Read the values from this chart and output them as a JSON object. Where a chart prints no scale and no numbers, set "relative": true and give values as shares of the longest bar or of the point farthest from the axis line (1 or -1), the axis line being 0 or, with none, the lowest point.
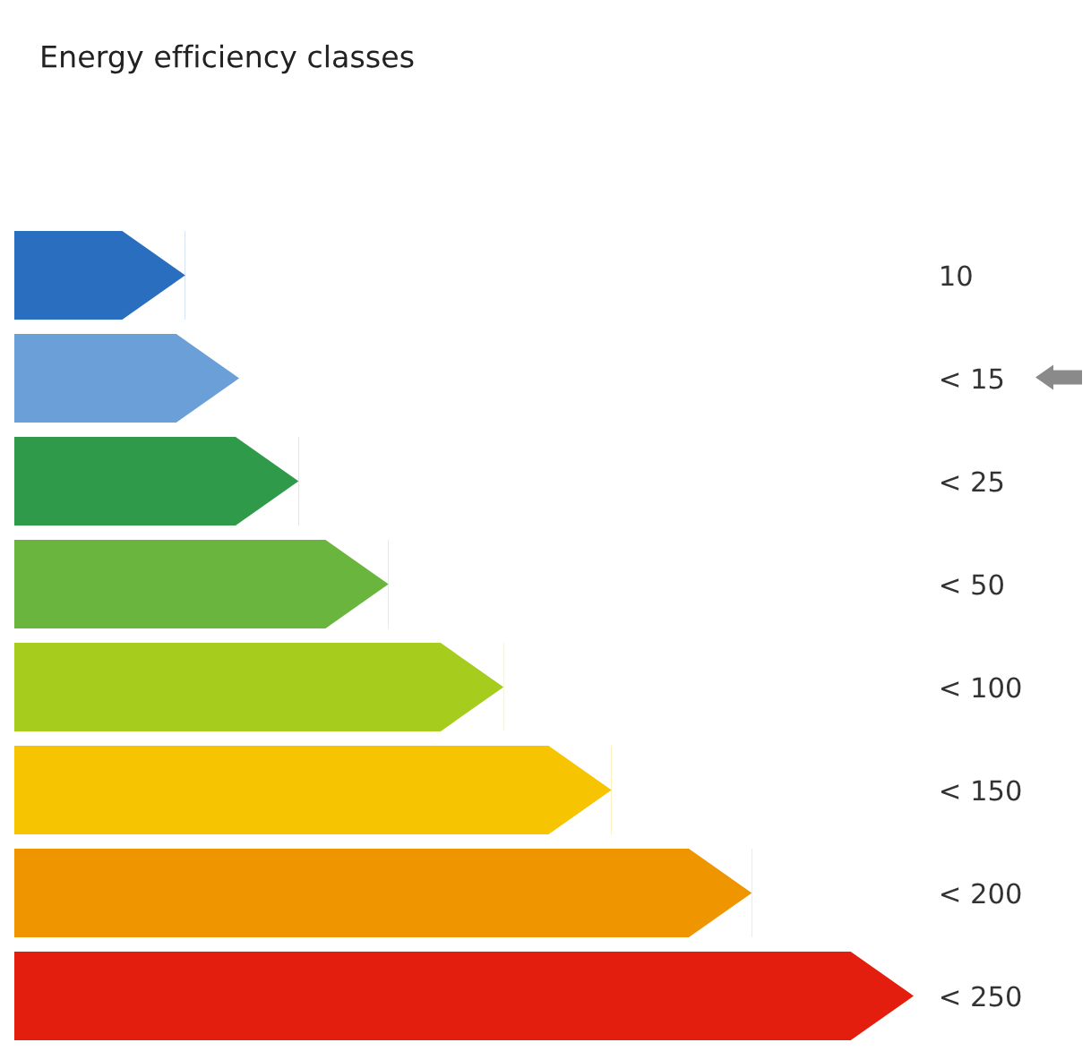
{
  "chart_data": {
    "type": "bar",
    "orientation": "horizontal",
    "relative": true,
    "title": "Energy efficiency classes",
    "categories": [
      "10",
      "< 15",
      "< 25",
      "< 50",
      "< 100",
      "< 150",
      "< 200",
      "< 250"
    ],
    "values": [
      0.19,
      0.25,
      0.316,
      0.416,
      0.544,
      0.664,
      0.82,
      1.0
    ],
    "colors": [
      "#2a6fbf",
      "#6a9fd8",
      "#2e9a4a",
      "#6ab53d",
      "#a6cc1e",
      "#f6c400",
      "#ef9500",
      "#e31e0e"
    ],
    "grid": false,
    "legend": false
  }
}
